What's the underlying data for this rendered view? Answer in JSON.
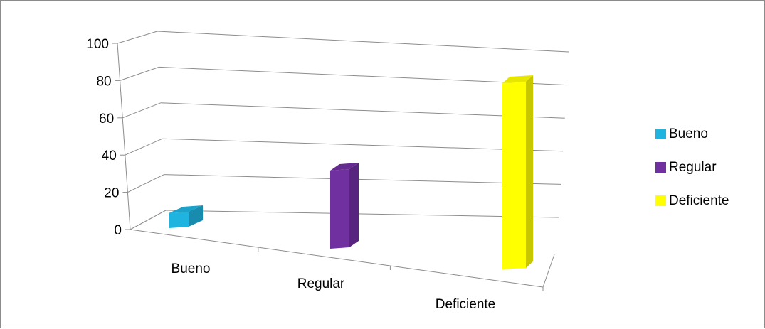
{
  "chart_data": {
    "type": "bar",
    "three_d": true,
    "categories": [
      "Bueno",
      "Regular",
      "Deficiente"
    ],
    "values": [
      8,
      42,
      100
    ],
    "colors": [
      "#1FB4E0",
      "#7030A0",
      "#FFFF00"
    ],
    "ylim": [
      0,
      100
    ],
    "yticks": [
      "0",
      "20",
      "40",
      "60",
      "80",
      "100"
    ],
    "grid": true,
    "legend_position": "right"
  },
  "legend": {
    "items": [
      {
        "label": "Bueno",
        "color": "#1FB4E0"
      },
      {
        "label": "Regular",
        "color": "#7030A0"
      },
      {
        "label": "Deficiente",
        "color": "#FFFF00"
      }
    ]
  }
}
